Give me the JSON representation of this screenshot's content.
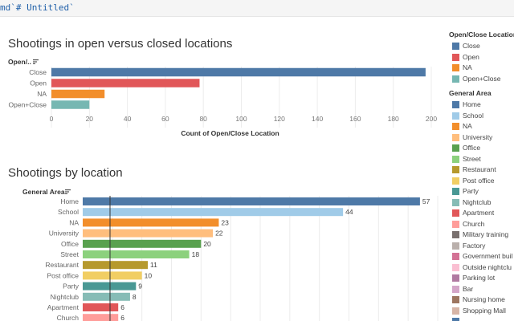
{
  "code": {
    "text": "md`# Untitled`"
  },
  "chart1": {
    "title": "Shootings in open versus closed locations",
    "header": "Open/..",
    "xlabel": "Count of Open/Close Location"
  },
  "chart2": {
    "title": "Shootings by location",
    "header": "General Area"
  },
  "legend1": {
    "title": "Open/Close Location",
    "items": [
      {
        "label": "Close",
        "color": "#4e79a7"
      },
      {
        "label": "Open",
        "color": "#e15759"
      },
      {
        "label": "NA",
        "color": "#f28e2b"
      },
      {
        "label": "Open+Close",
        "color": "#76b7b2"
      }
    ]
  },
  "legend2": {
    "title": "General Area",
    "items": [
      {
        "label": "Home",
        "color": "#4e79a7"
      },
      {
        "label": "School",
        "color": "#a0cbe8"
      },
      {
        "label": "NA",
        "color": "#f28e2b"
      },
      {
        "label": "University",
        "color": "#ffbe7d"
      },
      {
        "label": "Office",
        "color": "#59a14f"
      },
      {
        "label": "Street",
        "color": "#8cd17d"
      },
      {
        "label": "Restaurant",
        "color": "#b6992d"
      },
      {
        "label": "Post office",
        "color": "#f1ce63"
      },
      {
        "label": "Party",
        "color": "#499894"
      },
      {
        "label": "Nightclub",
        "color": "#86bcb6"
      },
      {
        "label": "Apartment",
        "color": "#e15759"
      },
      {
        "label": "Church",
        "color": "#ff9d9a"
      },
      {
        "label": "Military training",
        "color": "#79706e"
      },
      {
        "label": "Factory",
        "color": "#bab0ac"
      },
      {
        "label": "Government buil",
        "color": "#d37295"
      },
      {
        "label": "Outside nightclu",
        "color": "#fabfd2"
      },
      {
        "label": "Parking lot",
        "color": "#b07aa1"
      },
      {
        "label": "Bar",
        "color": "#d4a6c8"
      },
      {
        "label": "Nursing home",
        "color": "#9d7660"
      },
      {
        "label": "Shopping Mall",
        "color": "#d7b5a6"
      },
      {
        "label": "",
        "color": "#4e79a7"
      }
    ]
  },
  "chart_data": [
    {
      "type": "bar",
      "orientation": "horizontal",
      "title": "Shootings in open versus closed locations",
      "xlabel": "Count of Open/Close Location",
      "ylabel": "Open/..",
      "categories": [
        "Close",
        "Open",
        "NA",
        "Open+Close"
      ],
      "values": [
        197,
        78,
        28,
        20
      ],
      "colors": [
        "#4e79a7",
        "#e15759",
        "#f28e2b",
        "#76b7b2"
      ],
      "xlim": [
        0,
        200
      ],
      "xticks": [
        0,
        20,
        40,
        60,
        80,
        100,
        120,
        140,
        160,
        180,
        200
      ],
      "grid": true,
      "legend": "right"
    },
    {
      "type": "bar",
      "orientation": "horizontal",
      "title": "Shootings by location",
      "ylabel": "General Area",
      "categories": [
        "Home",
        "School",
        "NA",
        "University",
        "Office",
        "Street",
        "Restaurant",
        "Post office",
        "Party",
        "Nightclub",
        "Apartment",
        "Church"
      ],
      "values": [
        57,
        44,
        23,
        22,
        20,
        18,
        11,
        10,
        9,
        8,
        6,
        6
      ],
      "data_labels": [
        "57",
        "44",
        "23",
        "22",
        "20",
        "18",
        "11",
        "10",
        "9",
        "8",
        "6",
        "6"
      ],
      "colors": [
        "#4e79a7",
        "#a0cbe8",
        "#f28e2b",
        "#ffbe7d",
        "#59a14f",
        "#8cd17d",
        "#b6992d",
        "#f1ce63",
        "#499894",
        "#86bcb6",
        "#e15759",
        "#ff9d9a"
      ],
      "xlim": [
        0,
        60
      ],
      "grid": true,
      "legend": "right"
    }
  ]
}
